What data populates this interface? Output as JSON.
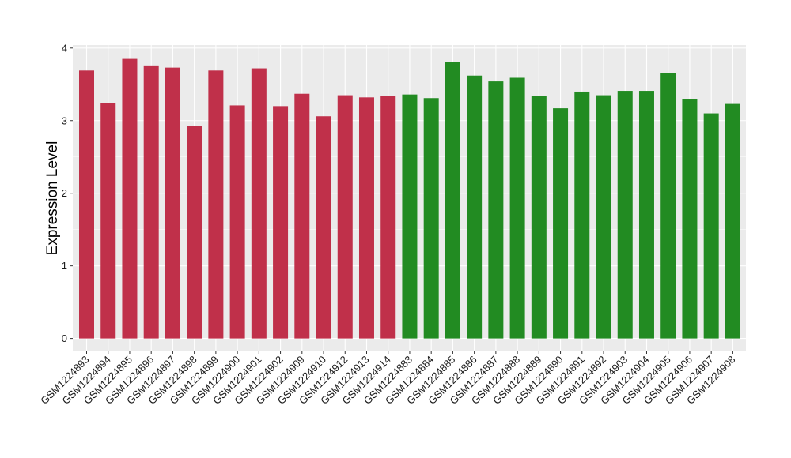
{
  "chart_data": {
    "type": "bar",
    "title": "",
    "xlabel": "",
    "ylabel": "Expression Level",
    "ylim": [
      0,
      4
    ],
    "yticks": [
      0,
      1,
      2,
      3,
      4
    ],
    "grid": true,
    "legend": "none",
    "categories": [
      "GSM1224893",
      "GSM1224894",
      "GSM1224895",
      "GSM1224896",
      "GSM1224897",
      "GSM1224898",
      "GSM1224899",
      "GSM1224900",
      "GSM1224901",
      "GSM1224902",
      "GSM1224909",
      "GSM1224910",
      "GSM1224912",
      "GSM1224913",
      "GSM1224914",
      "GSM1224883",
      "GSM1224884",
      "GSM1224885",
      "GSM1224886",
      "GSM1224887",
      "GSM1224888",
      "GSM1224889",
      "GSM1224890",
      "GSM1224891",
      "GSM1224892",
      "GSM1224903",
      "GSM1224904",
      "GSM1224905",
      "GSM1224906",
      "GSM1224907",
      "GSM1224908"
    ],
    "values": [
      3.69,
      3.24,
      3.85,
      3.76,
      3.73,
      2.93,
      3.69,
      3.21,
      3.72,
      3.2,
      3.37,
      3.06,
      3.35,
      3.32,
      3.34,
      3.36,
      3.31,
      3.81,
      3.62,
      3.54,
      3.59,
      3.34,
      3.17,
      3.4,
      3.35,
      3.41,
      3.41,
      3.65,
      3.3,
      3.1,
      3.23
    ],
    "colors": [
      "#c0304a",
      "#c0304a",
      "#c0304a",
      "#c0304a",
      "#c0304a",
      "#c0304a",
      "#c0304a",
      "#c0304a",
      "#c0304a",
      "#c0304a",
      "#c0304a",
      "#c0304a",
      "#c0304a",
      "#c0304a",
      "#c0304a",
      "#228b22",
      "#228b22",
      "#228b22",
      "#228b22",
      "#228b22",
      "#228b22",
      "#228b22",
      "#228b22",
      "#228b22",
      "#228b22",
      "#228b22",
      "#228b22",
      "#228b22",
      "#228b22",
      "#228b22",
      "#228b22"
    ],
    "panel_background": "#ebebeb",
    "grid_color": "#ffffff"
  }
}
